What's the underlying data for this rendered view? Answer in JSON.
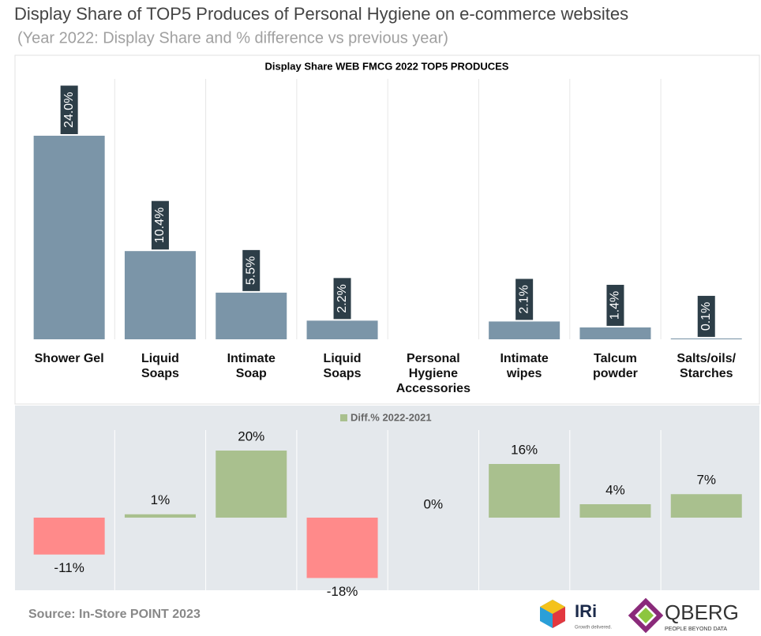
{
  "header": {
    "title": "Display Share of TOP5 Produces of Personal Hygiene on e-commerce websites",
    "subtitle": "(Year 2022: Display Share and % difference vs previous year)"
  },
  "chart_data": [
    {
      "type": "bar",
      "title": "Display Share WEB FMCG 2022 TOP5 PRODUCES",
      "categories": [
        [
          "Shower Gel"
        ],
        [
          "Liquid",
          "Soaps"
        ],
        [
          "Intimate",
          "Soap"
        ],
        [
          "Liquid",
          "Soaps"
        ],
        [
          "Personal",
          "Hygiene",
          "Accessories"
        ],
        [
          "Intimate",
          "wipes"
        ],
        [
          "Talcum",
          "powder"
        ],
        [
          "Salts/oils/",
          "Starches"
        ]
      ],
      "values": [
        24.0,
        10.4,
        5.5,
        2.2,
        null,
        2.1,
        1.4,
        0.1
      ],
      "value_labels": [
        "24.0%",
        "10.4%",
        "5.5%",
        "2.2%",
        null,
        "2.1%",
        "1.4%",
        "0.1%"
      ],
      "color": "#7b95a8",
      "label_box_color": "#2d3e48"
    },
    {
      "type": "bar",
      "legend": "Diff.% 2022-2021",
      "values": [
        -11,
        1,
        20,
        -18,
        0,
        16,
        4,
        7
      ],
      "value_labels": [
        "-11%",
        "1%",
        "20%",
        "-18%",
        "0%",
        "16%",
        "4%",
        "7%"
      ],
      "color": "#a9c08e",
      "negative_color": "#ff8a8a"
    }
  ],
  "footer": {
    "source": "Source: In-Store POINT 2023",
    "logos": [
      "IRi",
      "Growth delivered.",
      "QBERG",
      "PEOPLE BEYOND DATA"
    ]
  }
}
